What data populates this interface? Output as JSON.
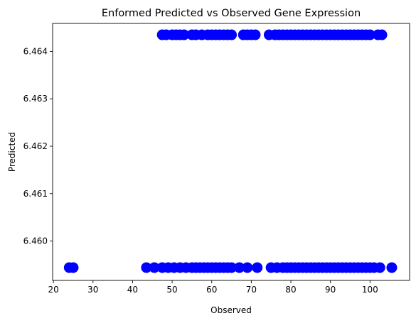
{
  "chart_data": {
    "type": "scatter",
    "title": "Enformed Predicted vs Observed Gene Expression",
    "xlabel": "Observed",
    "ylabel": "Predicted",
    "xlim": [
      19.8,
      110.0
    ],
    "ylim": [
      6.45917,
      6.46459
    ],
    "xticks": [
      20,
      30,
      40,
      50,
      60,
      70,
      80,
      90,
      100
    ],
    "yticks": [
      6.46,
      6.461,
      6.462,
      6.463,
      6.464
    ],
    "ytick_labels": [
      "6.460",
      "6.461",
      "6.462",
      "6.463",
      "6.464"
    ],
    "grid": false,
    "legend": "none",
    "marker_color": "#0000ff",
    "series": [
      {
        "y": 6.46435,
        "x": [
          47.5,
          48.5,
          50,
          51,
          52,
          53,
          55,
          56,
          57.5,
          59,
          60,
          61,
          62,
          63,
          64,
          65,
          68,
          69,
          70,
          71,
          74.5,
          76,
          77,
          78,
          79,
          80,
          81,
          82,
          83,
          84,
          85,
          86,
          87,
          88,
          89,
          90,
          91,
          92,
          93,
          94,
          95,
          96,
          97,
          98,
          99,
          100,
          102,
          103
        ]
      },
      {
        "y": 6.45944,
        "x": [
          24,
          25,
          43.5,
          45.5,
          47.5,
          49,
          50.5,
          52,
          53.5,
          55,
          56,
          57,
          58,
          59,
          60,
          61,
          62,
          63,
          64,
          65,
          67,
          69,
          71.5,
          75,
          76.5,
          78,
          79,
          80,
          81,
          82,
          83,
          84,
          85,
          86,
          87,
          88,
          89,
          90,
          91,
          92,
          93,
          94,
          95,
          96,
          97,
          98,
          99,
          100,
          101,
          102.5,
          105.5
        ]
      }
    ]
  }
}
